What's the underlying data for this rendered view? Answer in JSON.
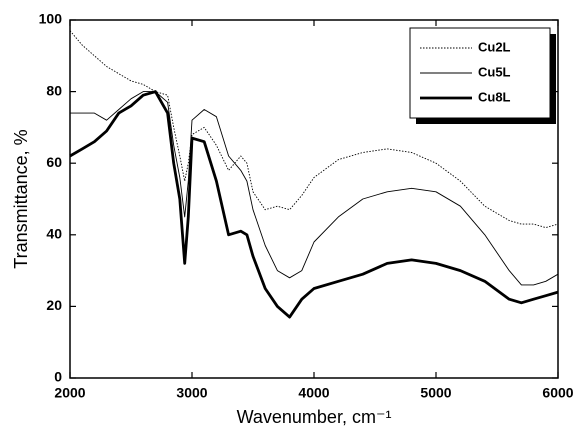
{
  "chart_data": {
    "type": "line",
    "xlabel": "Wavenumber, cm⁻¹",
    "ylabel": "Transmittance, %",
    "x": [
      2000,
      2100,
      2200,
      2300,
      2400,
      2500,
      2600,
      2700,
      2800,
      2850,
      2900,
      2940,
      2970,
      3000,
      3100,
      3200,
      3300,
      3400,
      3450,
      3500,
      3600,
      3700,
      3800,
      3900,
      4000,
      4200,
      4400,
      4600,
      4800,
      5000,
      5200,
      5400,
      5600,
      5700,
      5800,
      5900,
      6000
    ],
    "series": [
      {
        "name": "Cu2L",
        "color": "#000000",
        "width": 0.9,
        "style": "dotted",
        "values": [
          97,
          93,
          90,
          87,
          85,
          83,
          82,
          80,
          79,
          70,
          62,
          55,
          60,
          68,
          70,
          65,
          58,
          62,
          60,
          52,
          47,
          48,
          47,
          51,
          56,
          61,
          63,
          64,
          63,
          60,
          55,
          48,
          44,
          43,
          43,
          42,
          43
        ]
      },
      {
        "name": "Cu5L",
        "color": "#000000",
        "width": 0.9,
        "style": "solid",
        "values": [
          74,
          74,
          74,
          72,
          75,
          78,
          80,
          80,
          77,
          65,
          56,
          45,
          55,
          72,
          75,
          73,
          62,
          58,
          55,
          47,
          37,
          30,
          28,
          30,
          38,
          45,
          50,
          52,
          53,
          52,
          48,
          40,
          30,
          26,
          26,
          27,
          29
        ]
      },
      {
        "name": "Cu8L",
        "color": "#000000",
        "width": 2.8,
        "style": "solid",
        "values": [
          62,
          64,
          66,
          69,
          74,
          76,
          79,
          80,
          74,
          60,
          50,
          32,
          45,
          67,
          66,
          55,
          40,
          41,
          40,
          34,
          25,
          20,
          17,
          22,
          25,
          27,
          29,
          32,
          33,
          32,
          30,
          27,
          22,
          21,
          22,
          23,
          24
        ]
      }
    ],
    "xlim": [
      2000,
      6000
    ],
    "xticks": [
      2000,
      3000,
      4000,
      5000,
      6000
    ],
    "ylim": [
      0,
      100
    ],
    "yticks": [
      0,
      20,
      40,
      60,
      80,
      100
    ],
    "grid": false,
    "legend": "upper right"
  }
}
